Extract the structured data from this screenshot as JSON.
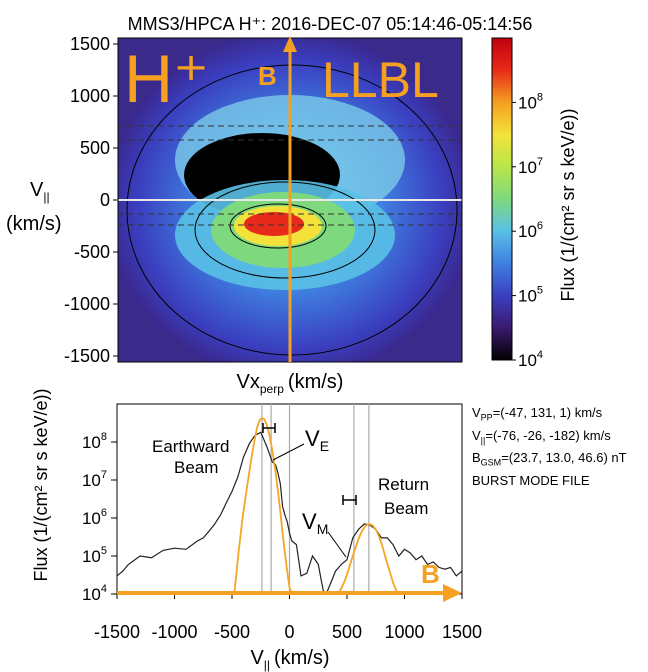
{
  "chart_data": [
    {
      "type": "heatmap",
      "title": "MMS3/HPCA H⁺: 2016-DEC-07 05:14:46-05:14:56",
      "xlabel": "Vx",
      "xlabel_sub": "perp",
      "xlabel_units": "(km/s)",
      "ylabel_line1": "V",
      "ylabel_sub": "||",
      "ylabel_line2": "(km/s)",
      "xlim": [
        -1500,
        1500
      ],
      "ylim": [
        -1500,
        1500
      ],
      "yticks": [
        1500,
        1000,
        500,
        0,
        -500,
        -1000,
        -1500
      ],
      "colorbar": {
        "label": "Flux (1/(cm² sr s keV/e))",
        "scale": "log",
        "range": [
          10000,
          1000000000
        ],
        "ticks": [
          {
            "value": 100000000,
            "base": "10",
            "exp": "8"
          },
          {
            "value": 10000000,
            "base": "10",
            "exp": "7"
          },
          {
            "value": 1000000,
            "base": "10",
            "exp": "6"
          },
          {
            "value": 100000,
            "base": "10",
            "exp": "5"
          },
          {
            "value": 10000,
            "base": "10",
            "exp": "4"
          }
        ],
        "colors": [
          "#000000",
          "#3a1a6e",
          "#3a3fc0",
          "#3f7fe0",
          "#59c0e6",
          "#7ed97e",
          "#b8e64a",
          "#f4e23a",
          "#f4a020",
          "#e82a1a",
          "#c00010"
        ]
      },
      "annotations": {
        "species": "H⁺",
        "region": "LLBL",
        "field": "B",
        "field_color": "#f5a020"
      },
      "peak": {
        "vx": -150,
        "vpar": -250
      }
    },
    {
      "type": "line",
      "xlabel": "V",
      "xlabel_sub": "||",
      "xlabel_units": "(km/s)",
      "ylabel": "Flux (1/(cm² sr s keV/e))",
      "xlim": [
        -1500,
        1500
      ],
      "ylim": [
        10000,
        1000000000
      ],
      "yscale": "log",
      "xticks": [
        -1500,
        -1000,
        -500,
        0,
        500,
        1000,
        1500
      ],
      "yticks": [
        {
          "value": 100000000,
          "base": "10",
          "exp": "8"
        },
        {
          "value": 10000000,
          "base": "10",
          "exp": "7"
        },
        {
          "value": 1000000,
          "base": "10",
          "exp": "6"
        },
        {
          "value": 100000,
          "base": "10",
          "exp": "5"
        },
        {
          "value": 10000,
          "base": "10",
          "exp": "4"
        }
      ],
      "series": [
        {
          "color": "#222222",
          "x": [
            -1500,
            -1450,
            -1400,
            -1300,
            -1200,
            -1100,
            -1000,
            -900,
            -800,
            -750,
            -700,
            -650,
            -600,
            -550,
            -500,
            -450,
            -400,
            -350,
            -300,
            -250,
            -200,
            -150,
            -120,
            -100,
            -80,
            -60,
            -40,
            -20,
            0,
            20,
            60,
            100,
            150,
            200,
            250,
            280,
            300,
            330,
            360,
            400,
            450,
            500,
            550,
            600,
            650,
            700,
            750,
            800,
            850,
            900,
            950,
            1000,
            1050,
            1100,
            1150,
            1200,
            1250,
            1300,
            1350,
            1400,
            1450,
            1500
          ],
          "y": [
            30000,
            40000,
            60000,
            100000,
            90000,
            140000,
            160000,
            150000,
            250000,
            300000,
            450000,
            700000,
            1200000,
            2500000,
            5000000,
            12000000,
            40000000,
            90000000,
            150000000,
            180000000,
            80000000,
            30000000,
            25000000,
            15000000,
            8000000,
            2000000,
            1200000,
            800000,
            400000,
            250000,
            200000,
            30000,
            35000,
            100000,
            60000,
            20000,
            10000,
            12000,
            20000,
            40000,
            60000,
            80000,
            300000,
            500000,
            700000,
            650000,
            500000,
            300000,
            300000,
            200000,
            100000,
            150000,
            120000,
            80000,
            100000,
            60000,
            70000,
            50000,
            45000,
            50000,
            30000,
            40000
          ]
        },
        {
          "color": "#f5a623",
          "x": [
            -480,
            -460,
            -440,
            -420,
            -400,
            -380,
            -360,
            -340,
            -320,
            -300,
            -280,
            -260,
            -240,
            -220,
            -200,
            -180,
            -160,
            -140,
            -120,
            -100,
            -80,
            -60,
            -40,
            -20,
            0,
            20,
            40,
            60
          ],
          "y": [
            10000,
            40000,
            150000,
            500000,
            1500000,
            4000000,
            10000000,
            25000000,
            60000000,
            130000000,
            250000000,
            380000000,
            420000000,
            400000000,
            300000000,
            180000000,
            90000000,
            40000000,
            15000000,
            5000000,
            1500000,
            400000,
            120000,
            40000,
            15000,
            10000,
            10000,
            10000
          ]
        },
        {
          "color": "#f5a623",
          "x": [
            420,
            450,
            480,
            510,
            540,
            570,
            600,
            630,
            660,
            690,
            720,
            750,
            780,
            810,
            840,
            870,
            900,
            930,
            960
          ],
          "y": [
            10000,
            14000,
            22000,
            40000,
            80000,
            150000,
            280000,
            450000,
            620000,
            700000,
            650000,
            500000,
            320000,
            170000,
            80000,
            40000,
            20000,
            12000,
            10000
          ]
        }
      ],
      "vlines": [
        -240,
        -160,
        0,
        560,
        690
      ],
      "labels": {
        "earthward": [
          "Earthward",
          "Beam"
        ],
        "return": [
          "Return",
          "Beam"
        ],
        "ve": {
          "main": "V",
          "sub": "E"
        },
        "vm": {
          "main": "V",
          "sub": "M"
        },
        "field": "B"
      }
    }
  ],
  "info": {
    "vpp": {
      "main": "V",
      "sub": "PP",
      "rest": "=(-47, 131, 1) km/s"
    },
    "vpar": {
      "main": "V",
      "sub": "||",
      "rest": "=(-76, -26, -182) km/s"
    },
    "bgsm": {
      "main": "B",
      "sub": "GSM",
      "rest": "=(23.7, 13.0, 46.6) nT"
    },
    "mode": "BURST MODE FILE"
  }
}
